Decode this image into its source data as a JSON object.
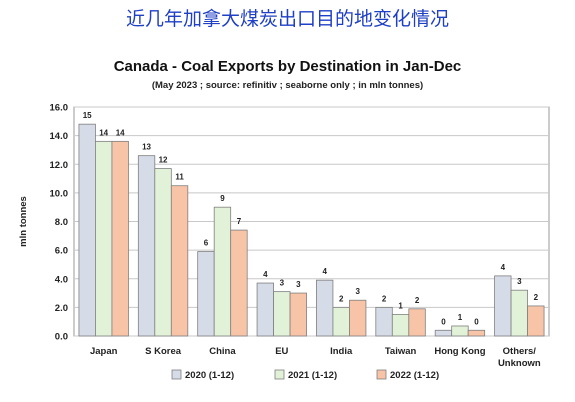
{
  "banner": "近几年加拿大煤炭出口目的地变化情况",
  "chart_data": {
    "type": "bar",
    "title": "Canada - Coal Exports by Destination in Jan-Dec",
    "subtitle": "(May 2023 ; source: refinitiv ; seaborne only ; in mln tonnes)",
    "ylabel": "mln tonnes",
    "xlabel": "",
    "ylim": [
      0,
      16
    ],
    "yticks": [
      "0.0",
      "2.0",
      "4.0",
      "6.0",
      "8.0",
      "10.0",
      "12.0",
      "14.0",
      "16.0"
    ],
    "grid": true,
    "legend_position": "bottom",
    "categories": [
      "Japan",
      "S Korea",
      "China",
      "EU",
      "India",
      "Taiwan",
      "Hong Kong",
      "Others/ Unknown"
    ],
    "series": [
      {
        "name": "2020 (1-12)",
        "color": "#d6dbe8",
        "values": [
          14.8,
          12.6,
          5.9,
          3.7,
          3.9,
          2.0,
          0.4,
          4.2
        ],
        "labels": [
          "15",
          "13",
          "6",
          "4",
          "4",
          "2",
          "0",
          "4"
        ]
      },
      {
        "name": "2021 (1-12)",
        "color": "#e2f2d9",
        "values": [
          13.6,
          11.7,
          9.0,
          3.1,
          2.0,
          1.5,
          0.7,
          3.2
        ],
        "labels": [
          "14",
          "12",
          "9",
          "3",
          "2",
          "1",
          "1",
          "3"
        ]
      },
      {
        "name": "2022 (1-12)",
        "color": "#f7c4a8",
        "values": [
          13.6,
          10.5,
          7.4,
          3.0,
          2.5,
          1.9,
          0.4,
          2.1
        ],
        "labels": [
          "14",
          "11",
          "7",
          "3",
          "3",
          "2",
          "0",
          "2"
        ]
      }
    ]
  }
}
